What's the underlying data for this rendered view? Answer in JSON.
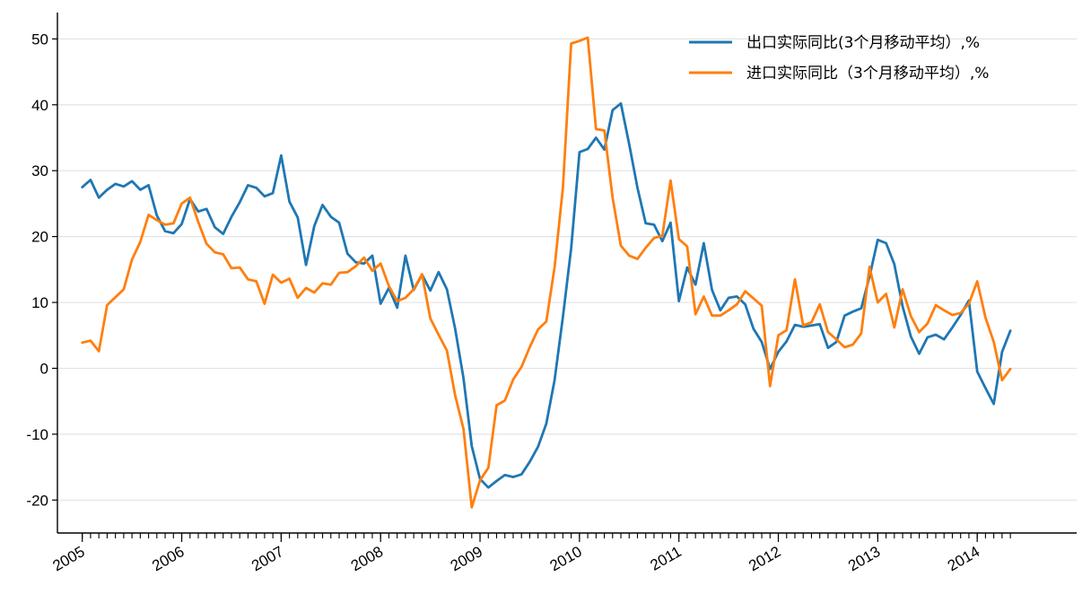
{
  "chart_data": {
    "type": "line",
    "title": "",
    "xlabel": "",
    "ylabel": "",
    "ylim": [
      -25,
      54
    ],
    "xlim": [
      2004.75,
      2015.0
    ],
    "grid": "horizontal",
    "legend_position": "top-right",
    "yticks": [
      50,
      40,
      30,
      20,
      10,
      0,
      -10,
      -20
    ],
    "ytick_labels": [
      "50",
      "40",
      "30",
      "20",
      "10",
      "0",
      "-10",
      "-20"
    ],
    "xticks": [
      2005,
      2006,
      2007,
      2008,
      2009,
      2010,
      2011,
      2012,
      2013,
      2014
    ],
    "xtick_labels": [
      "2005",
      "2006",
      "2007",
      "2008",
      "2009",
      "2010",
      "2011",
      "2012",
      "2013",
      "2014"
    ],
    "x_start": 2005,
    "x_step": 0.0833333,
    "series": [
      {
        "name": "出口实际同比(3个月移动平均）,%",
        "color": "#1f77b4",
        "values": [
          27.5,
          28.6,
          25.9,
          27.1,
          28.0,
          27.6,
          28.4,
          27.1,
          27.8,
          23.2,
          20.8,
          20.5,
          21.9,
          25.7,
          23.8,
          24.2,
          21.4,
          20.4,
          23.0,
          25.2,
          27.8,
          27.4,
          26.1,
          26.6,
          32.3,
          25.3,
          22.9,
          15.7,
          21.6,
          24.8,
          23.0,
          22.1,
          17.4,
          16.1,
          15.9,
          17.1,
          9.8,
          12.2,
          9.2,
          17.1,
          11.9,
          14.2,
          11.8,
          14.6,
          12.0,
          6.0,
          -1.5,
          -11.8,
          -16.8,
          -18.1,
          -17.1,
          -16.2,
          -16.5,
          -16.1,
          -14.2,
          -11.9,
          -8.4,
          -1.8,
          7.8,
          18.2,
          32.8,
          33.3,
          35.0,
          33.2,
          39.2,
          40.2,
          34.0,
          27.4,
          22.0,
          21.8,
          19.3,
          22.1,
          10.2,
          15.3,
          12.7,
          19.0,
          11.9,
          8.8,
          10.7,
          10.9,
          9.7,
          6.0,
          4.0,
          -0.1,
          2.5,
          4.1,
          6.6,
          6.3,
          6.5,
          6.7,
          3.1,
          4.0,
          8.0,
          8.6,
          9.1,
          13.9,
          19.5,
          19.0,
          15.8,
          9.4,
          4.8,
          2.2,
          4.7,
          5.1,
          4.4,
          6.2,
          8.1,
          10.3,
          -0.5,
          -3.0,
          -5.4,
          2.5,
          5.7
        ]
      },
      {
        "name": "进口实际同比（3个月移动平均）,%",
        "color": "#ff7f0e",
        "values": [
          3.9,
          4.2,
          2.6,
          9.6,
          10.8,
          12.0,
          16.5,
          19.2,
          23.3,
          22.5,
          21.8,
          22.0,
          25.0,
          25.9,
          22.2,
          18.9,
          17.6,
          17.3,
          15.2,
          15.3,
          13.5,
          13.2,
          9.8,
          14.2,
          13.0,
          13.6,
          10.7,
          12.2,
          11.5,
          12.9,
          12.7,
          14.5,
          14.6,
          15.5,
          16.8,
          14.8,
          15.9,
          12.5,
          10.2,
          10.7,
          12.0,
          14.3,
          7.6,
          5.1,
          2.7,
          -4.1,
          -9.2,
          -21.1,
          -17.0,
          -15.1,
          -5.6,
          -4.9,
          -1.7,
          0.2,
          3.2,
          5.9,
          7.1,
          15.3,
          27.4,
          49.3,
          49.7,
          50.2,
          36.3,
          36.1,
          25.9,
          18.6,
          17.1,
          16.6,
          18.3,
          19.8,
          20.1,
          28.5,
          19.6,
          18.5,
          8.2,
          10.9,
          8.0,
          8.0,
          8.8,
          9.7,
          11.7,
          10.6,
          9.5,
          -2.7,
          5.0,
          5.8,
          13.5,
          6.5,
          7.0,
          9.7,
          5.5,
          4.4,
          3.2,
          3.6,
          5.3,
          15.4,
          10.0,
          11.3,
          6.2,
          12.0,
          7.9,
          5.5,
          6.8,
          9.6,
          8.8,
          8.1,
          8.4,
          9.8,
          13.2,
          7.7,
          4.0,
          -1.8,
          -0.1
        ]
      }
    ]
  }
}
